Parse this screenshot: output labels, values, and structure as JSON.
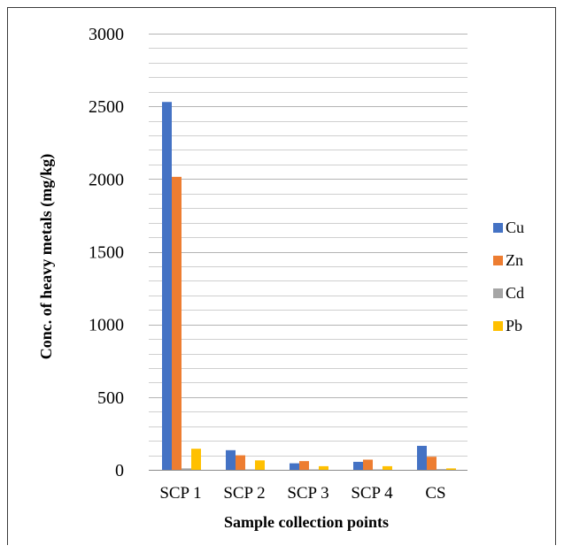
{
  "chart_data": {
    "type": "bar",
    "xlabel": "Sample collection points",
    "ylabel": "Conc. of heavy metals (mg/kg)",
    "ylim": [
      0,
      3000
    ],
    "yticks": [
      0,
      500,
      1000,
      1500,
      2000,
      2500,
      3000
    ],
    "grid": true,
    "legend_position": "right",
    "categories": [
      "SCP 1",
      "SCP 2",
      "SCP 3",
      "SCP 4",
      "CS"
    ],
    "series": [
      {
        "name": "Cu",
        "color": "#4472C4",
        "values": [
          2530,
          135,
          45,
          55,
          165
        ]
      },
      {
        "name": "Zn",
        "color": "#ED7D31",
        "values": [
          2015,
          100,
          60,
          70,
          90
        ]
      },
      {
        "name": "Cd",
        "color": "#A5A5A5",
        "values": [
          10,
          3,
          3,
          3,
          5
        ]
      },
      {
        "name": "Pb",
        "color": "#FFC000",
        "values": [
          145,
          65,
          25,
          25,
          10
        ]
      }
    ]
  }
}
